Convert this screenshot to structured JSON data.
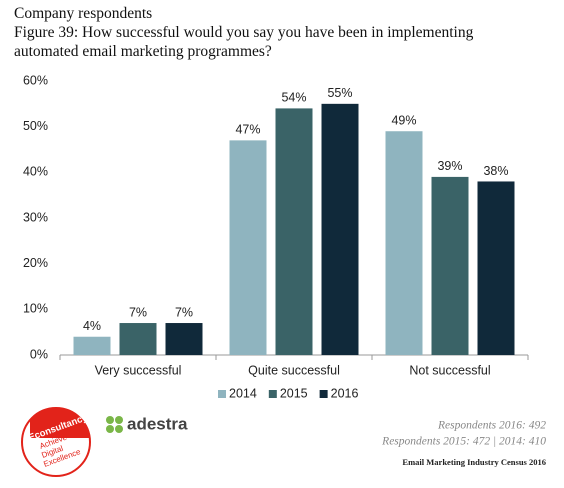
{
  "chart_data": {
    "type": "bar",
    "subtitle": "Company respondents",
    "title": "Figure 39: How successful would you say you have been in implementing automated email marketing programmes?",
    "categories": [
      "Very successful",
      "Quite successful",
      "Not successful"
    ],
    "series": [
      {
        "name": "2014",
        "color": "#8fb4bf",
        "values": [
          4,
          47,
          49
        ],
        "value_labels": [
          "4%",
          "47%",
          "49%"
        ]
      },
      {
        "name": "2015",
        "color": "#3a6367",
        "values": [
          7,
          54,
          39
        ],
        "value_labels": [
          "7%",
          "54%",
          "39%"
        ]
      },
      {
        "name": "2016",
        "color": "#10293a",
        "values": [
          7,
          55,
          38
        ],
        "value_labels": [
          "7%",
          "55%",
          "38%"
        ]
      }
    ],
    "ylim": [
      0,
      60
    ],
    "yticks": [
      {
        "value": 0,
        "label": "0%"
      },
      {
        "value": 10,
        "label": "10%"
      },
      {
        "value": 20,
        "label": "20%"
      },
      {
        "value": 30,
        "label": "30%"
      },
      {
        "value": 40,
        "label": "40%"
      },
      {
        "value": 50,
        "label": "50%"
      },
      {
        "value": 60,
        "label": "60%"
      }
    ],
    "grid": false,
    "legend": "bottom"
  },
  "footer": {
    "respondents": [
      "Respondents 2016: 492",
      "Respondents 2015: 472 | 2014: 410"
    ],
    "source": "Email Marketing Industry Census 2016",
    "adestra": "adestra",
    "econsultancy": "Econsultancy",
    "econsultancy_tagline": [
      "Achieve",
      "Digital",
      "Excellence"
    ]
  }
}
